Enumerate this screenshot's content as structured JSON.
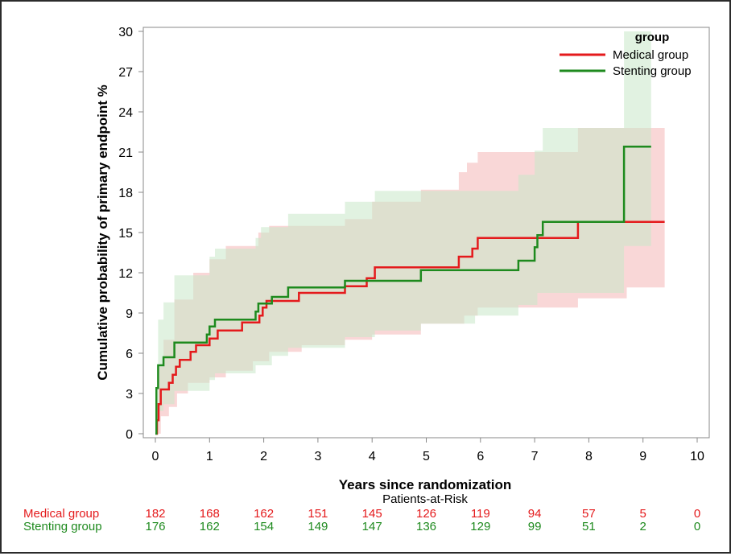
{
  "chart_data": {
    "type": "line",
    "xlabel": "Years since randomization",
    "ylabel": "Cumulative probability of primary endpoint %",
    "xlim": [
      0,
      10
    ],
    "ylim": [
      0,
      30
    ],
    "x_ticks": [
      "0",
      "1",
      "2",
      "3",
      "4",
      "5",
      "6",
      "7",
      "8",
      "9",
      "10"
    ],
    "y_ticks": [
      "0",
      "3",
      "6",
      "9",
      "12",
      "15",
      "18",
      "21",
      "24",
      "27",
      "30"
    ],
    "legend": {
      "title": "group",
      "placement": "top-right"
    },
    "series": [
      {
        "name": "Medical group",
        "color": "#e41a1c",
        "band_color": "#f4b6b6",
        "steps": [
          [
            0,
            0
          ],
          [
            0.03,
            1
          ],
          [
            0.06,
            2.2
          ],
          [
            0.1,
            3.3
          ],
          [
            0.25,
            3.8
          ],
          [
            0.32,
            4.4
          ],
          [
            0.38,
            5.0
          ],
          [
            0.45,
            5.5
          ],
          [
            0.65,
            6.1
          ],
          [
            0.75,
            6.6
          ],
          [
            1.0,
            7.1
          ],
          [
            1.15,
            7.7
          ],
          [
            1.6,
            8.3
          ],
          [
            1.92,
            8.8
          ],
          [
            1.98,
            9.4
          ],
          [
            2.05,
            9.9
          ],
          [
            2.65,
            10.5
          ],
          [
            3.5,
            11.0
          ],
          [
            3.9,
            11.6
          ],
          [
            4.05,
            12.4
          ],
          [
            5.6,
            13.2
          ],
          [
            5.85,
            13.8
          ],
          [
            5.95,
            14.6
          ],
          [
            7.8,
            15.8
          ],
          [
            9.4,
            15.8
          ]
        ],
        "upper": [
          [
            0,
            0
          ],
          [
            0.05,
            5
          ],
          [
            0.15,
            7
          ],
          [
            0.35,
            10
          ],
          [
            0.7,
            12
          ],
          [
            1.0,
            13
          ],
          [
            1.3,
            14
          ],
          [
            1.9,
            15
          ],
          [
            2.1,
            15.5
          ],
          [
            3.5,
            16
          ],
          [
            4.0,
            17.3
          ],
          [
            4.9,
            18.2
          ],
          [
            5.6,
            19.5
          ],
          [
            5.75,
            20.2
          ],
          [
            5.95,
            21
          ],
          [
            7.8,
            22.8
          ],
          [
            9.4,
            22.8
          ]
        ],
        "lower": [
          [
            0,
            0
          ],
          [
            0.1,
            1.3
          ],
          [
            0.25,
            2
          ],
          [
            0.4,
            3
          ],
          [
            0.6,
            3.8
          ],
          [
            1.0,
            4.2
          ],
          [
            1.3,
            4.7
          ],
          [
            1.8,
            5.4
          ],
          [
            2.1,
            6.1
          ],
          [
            2.7,
            6.6
          ],
          [
            3.5,
            7
          ],
          [
            4.0,
            7.4
          ],
          [
            4.9,
            8.2
          ],
          [
            5.7,
            8.8
          ],
          [
            5.95,
            9.4
          ],
          [
            7.8,
            10.1
          ],
          [
            8.7,
            10.9
          ],
          [
            9.4,
            10.9
          ]
        ]
      },
      {
        "name": "Stenting group",
        "color": "#1e8a1e",
        "band_color": "#c9e8c9",
        "steps": [
          [
            0,
            0
          ],
          [
            0.02,
            3.4
          ],
          [
            0.05,
            5.1
          ],
          [
            0.15,
            5.7
          ],
          [
            0.35,
            6.8
          ],
          [
            0.95,
            7.4
          ],
          [
            1.0,
            8.0
          ],
          [
            1.1,
            8.5
          ],
          [
            1.85,
            9.1
          ],
          [
            1.9,
            9.7
          ],
          [
            2.15,
            10.2
          ],
          [
            2.45,
            10.9
          ],
          [
            3.5,
            11.4
          ],
          [
            4.9,
            12.2
          ],
          [
            6.7,
            12.9
          ],
          [
            7.0,
            13.9
          ],
          [
            7.05,
            14.8
          ],
          [
            7.15,
            15.8
          ],
          [
            8.65,
            21.4
          ],
          [
            9.15,
            21.4
          ]
        ],
        "upper": [
          [
            0,
            0
          ],
          [
            0.05,
            8.5
          ],
          [
            0.15,
            9.8
          ],
          [
            0.35,
            11.8
          ],
          [
            1.0,
            13.2
          ],
          [
            1.1,
            13.8
          ],
          [
            1.85,
            14.6
          ],
          [
            1.95,
            15.4
          ],
          [
            2.45,
            16.4
          ],
          [
            3.5,
            17.3
          ],
          [
            4.05,
            18.1
          ],
          [
            6.7,
            19.3
          ],
          [
            7.0,
            21.1
          ],
          [
            7.15,
            22.8
          ],
          [
            8.65,
            30
          ],
          [
            9.15,
            30
          ]
        ],
        "lower": [
          [
            0,
            0
          ],
          [
            0.05,
            1.7
          ],
          [
            0.15,
            2.2
          ],
          [
            0.35,
            3.2
          ],
          [
            1.0,
            4.0
          ],
          [
            1.1,
            4.5
          ],
          [
            1.85,
            5.1
          ],
          [
            2.15,
            5.8
          ],
          [
            2.45,
            6.4
          ],
          [
            3.5,
            7.2
          ],
          [
            4.05,
            7.7
          ],
          [
            4.9,
            8.2
          ],
          [
            5.9,
            8.8
          ],
          [
            6.7,
            9.6
          ],
          [
            7.05,
            10.5
          ],
          [
            8.65,
            14.0
          ],
          [
            9.15,
            14.0
          ]
        ]
      }
    ]
  },
  "risk_table": {
    "title": "Patients-at-Risk",
    "rows": [
      {
        "label": "Medical group",
        "color": "#e41a1c",
        "values": [
          "182",
          "168",
          "162",
          "151",
          "145",
          "126",
          "119",
          "94",
          "57",
          "5",
          "0"
        ]
      },
      {
        "label": "Stenting group",
        "color": "#1e8a1e",
        "values": [
          "176",
          "162",
          "154",
          "149",
          "147",
          "136",
          "129",
          "99",
          "51",
          "2",
          "0"
        ]
      }
    ]
  }
}
